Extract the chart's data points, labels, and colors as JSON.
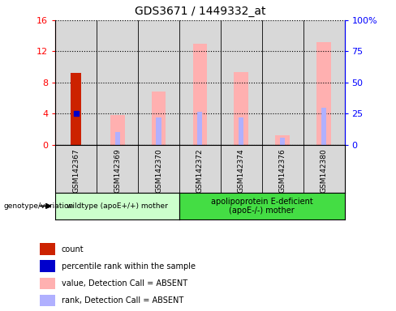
{
  "title": "GDS3671 / 1449332_at",
  "samples": [
    "GSM142367",
    "GSM142369",
    "GSM142370",
    "GSM142372",
    "GSM142374",
    "GSM142376",
    "GSM142380"
  ],
  "count_values": [
    9.2,
    null,
    null,
    null,
    null,
    null,
    null
  ],
  "percentile_rank": [
    4.0,
    null,
    null,
    null,
    null,
    null,
    null
  ],
  "value_absent": [
    null,
    3.8,
    6.8,
    13.0,
    9.3,
    1.2,
    13.2
  ],
  "rank_absent": [
    null,
    1.6,
    3.5,
    4.2,
    3.5,
    0.9,
    4.7
  ],
  "ylim_left": [
    0,
    16
  ],
  "ylim_right": [
    0,
    100
  ],
  "yticks_left": [
    0,
    4,
    8,
    12,
    16
  ],
  "yticks_right": [
    0,
    25,
    50,
    75,
    100
  ],
  "yticklabels_right": [
    "0",
    "25",
    "50",
    "75",
    "100%"
  ],
  "group1_label": "wildtype (apoE+/+) mother",
  "group2_label": "apolipoprotein E-deficient\n(apoE-/-) mother",
  "group1_count": 3,
  "group2_count": 4,
  "color_count": "#cc2200",
  "color_rank": "#0000cc",
  "color_value_absent": "#ffb0b0",
  "color_rank_absent": "#b0b0ff",
  "color_group1_bg": "#ccffcc",
  "color_group2_bg": "#44dd44",
  "color_col_bg": "#d8d8d8",
  "legend_items": [
    {
      "label": "count",
      "color": "#cc2200"
    },
    {
      "label": "percentile rank within the sample",
      "color": "#0000cc"
    },
    {
      "label": "value, Detection Call = ABSENT",
      "color": "#ffb0b0"
    },
    {
      "label": "rank, Detection Call = ABSENT",
      "color": "#b0b0ff"
    }
  ]
}
